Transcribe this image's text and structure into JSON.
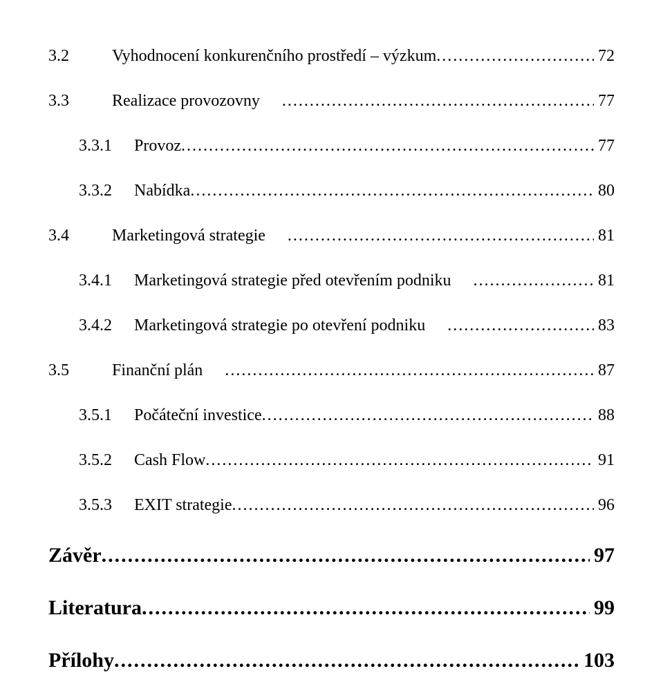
{
  "dots": "..............................................................................................................................................................................................",
  "entries": [
    {
      "level": "lvl1",
      "num": "3.2",
      "title": "Vyhodnocení konkurenčního prostředí – výzkum",
      "page": "72",
      "gap": ""
    },
    {
      "level": "lvl1",
      "num": "3.3",
      "title": "Realizace provozovny",
      "page": "77",
      "gap": ""
    },
    {
      "level": "lvl2",
      "num": "3.3.1",
      "title": "Provoz",
      "page": "77",
      "gap": ""
    },
    {
      "level": "lvl2",
      "num": "3.3.2",
      "title": "Nabídka",
      "page": "80",
      "gap": ""
    },
    {
      "level": "lvl1",
      "num": "3.4",
      "title": "Marketingová strategie",
      "page": "81",
      "gap": ""
    },
    {
      "level": "lvl2",
      "num": "3.4.1",
      "title": "Marketingová strategie před otevřením podniku",
      "page": "81",
      "gap": ""
    },
    {
      "level": "lvl2",
      "num": "3.4.2",
      "title": "Marketingová strategie po otevření podniku",
      "page": "83",
      "gap": ""
    },
    {
      "level": "lvl1",
      "num": "3.5",
      "title": "Finanční plán",
      "page": "87",
      "gap": ""
    },
    {
      "level": "lvl2",
      "num": "3.5.1",
      "title": "Počáteční investice",
      "page": "88",
      "gap": ""
    },
    {
      "level": "lvl2",
      "num": "3.5.2",
      "title": "Cash Flow",
      "page": "91",
      "gap": ""
    },
    {
      "level": "lvl2",
      "num": "3.5.3",
      "title": "EXIT strategie",
      "page": "96",
      "gap": ""
    },
    {
      "level": "lvl0",
      "num": "",
      "title": "Závěr",
      "page": "97",
      "gap": ""
    },
    {
      "level": "lvl0",
      "num": "",
      "title": "Literatura",
      "page": "99",
      "gap": ""
    },
    {
      "level": "lvl0",
      "num": "",
      "title": "Přílohy",
      "page": "103",
      "gap": ""
    }
  ]
}
